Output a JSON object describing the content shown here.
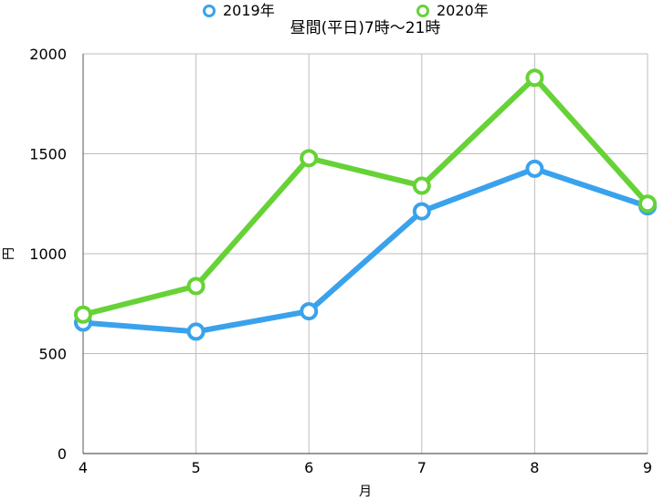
{
  "chart_data": {
    "type": "line",
    "title": "昼間(平日)7時〜21時",
    "xlabel": "月",
    "ylabel": "円",
    "x": [
      4,
      5,
      6,
      7,
      8,
      9
    ],
    "xlim": [
      4,
      9
    ],
    "ylim": [
      0,
      2000
    ],
    "yticks": [
      0,
      500,
      1000,
      1500,
      2000
    ],
    "grid": true,
    "legend": "top-center",
    "series": [
      {
        "name": "2019年",
        "color": "#3aa2ec",
        "values": [
          655,
          610,
          712,
          1212,
          1425,
          1237
        ]
      },
      {
        "name": "2020年",
        "color": "#66d236",
        "values": [
          695,
          838,
          1478,
          1340,
          1880,
          1250
        ]
      }
    ]
  }
}
